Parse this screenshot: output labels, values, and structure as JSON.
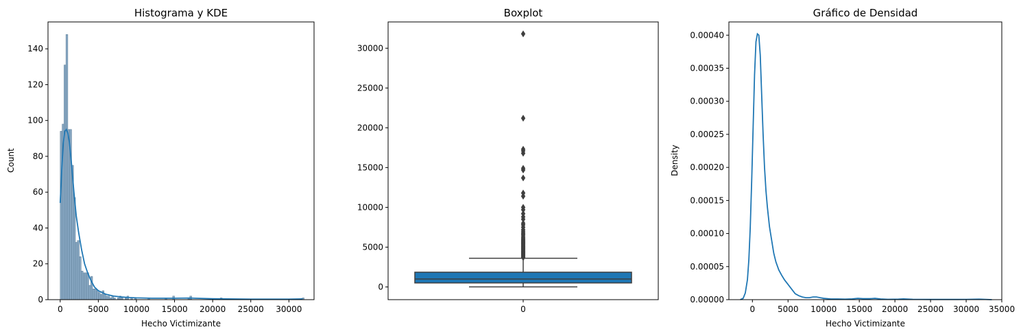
{
  "chart_data": [
    {
      "type": "bar",
      "title": "Histograma y KDE",
      "xlabel": "Hecho Victimizante",
      "ylabel": "Count",
      "xlim": [
        -1600,
        33300
      ],
      "ylim": [
        0,
        155
      ],
      "xticks": [
        0,
        5000,
        10000,
        15000,
        20000,
        25000,
        30000
      ],
      "yticks": [
        0,
        20,
        40,
        60,
        80,
        100,
        120,
        140
      ],
      "bin_width": 250,
      "bins": [
        {
          "x": 0,
          "count": 94
        },
        {
          "x": 250,
          "count": 98
        },
        {
          "x": 500,
          "count": 131
        },
        {
          "x": 750,
          "count": 148
        },
        {
          "x": 1000,
          "count": 95
        },
        {
          "x": 1250,
          "count": 95
        },
        {
          "x": 1500,
          "count": 75
        },
        {
          "x": 1750,
          "count": 57
        },
        {
          "x": 2000,
          "count": 32
        },
        {
          "x": 2250,
          "count": 33
        },
        {
          "x": 2500,
          "count": 24
        },
        {
          "x": 2750,
          "count": 16
        },
        {
          "x": 3000,
          "count": 15
        },
        {
          "x": 3250,
          "count": 15
        },
        {
          "x": 3500,
          "count": 15
        },
        {
          "x": 3750,
          "count": 8
        },
        {
          "x": 4000,
          "count": 13
        },
        {
          "x": 4250,
          "count": 6
        },
        {
          "x": 4500,
          "count": 6
        },
        {
          "x": 4750,
          "count": 5
        },
        {
          "x": 5000,
          "count": 4
        },
        {
          "x": 5250,
          "count": 3
        },
        {
          "x": 5500,
          "count": 5
        },
        {
          "x": 5750,
          "count": 3
        },
        {
          "x": 6000,
          "count": 2
        },
        {
          "x": 6250,
          "count": 2
        },
        {
          "x": 6500,
          "count": 1
        },
        {
          "x": 6750,
          "count": 2
        },
        {
          "x": 7000,
          "count": 1
        },
        {
          "x": 7500,
          "count": 1
        },
        {
          "x": 7750,
          "count": 2
        },
        {
          "x": 8000,
          "count": 1
        },
        {
          "x": 8500,
          "count": 1
        },
        {
          "x": 8750,
          "count": 2
        },
        {
          "x": 9250,
          "count": 1
        },
        {
          "x": 9750,
          "count": 1
        },
        {
          "x": 11500,
          "count": 1
        },
        {
          "x": 13750,
          "count": 1
        },
        {
          "x": 14750,
          "count": 2
        },
        {
          "x": 16750,
          "count": 1
        },
        {
          "x": 17000,
          "count": 2
        },
        {
          "x": 21000,
          "count": 1
        },
        {
          "x": 31750,
          "count": 1
        }
      ],
      "kde": {
        "x": [
          0,
          200,
          400,
          600,
          800,
          1000,
          1200,
          1500,
          1800,
          2100,
          2400,
          2800,
          3200,
          3600,
          4000,
          4500,
          5000,
          6000,
          7000,
          8000,
          9000,
          10000,
          12000,
          15000,
          17000,
          20000,
          25000,
          30000,
          31800
        ],
        "y": [
          54,
          72,
          87,
          94,
          95,
          93,
          88,
          75,
          60,
          47,
          38,
          28,
          20,
          15,
          11,
          7,
          5,
          3,
          2,
          1.5,
          1.2,
          1,
          0.8,
          0.8,
          0.9,
          0.5,
          0.3,
          0.3,
          0.4
        ]
      },
      "colors": {
        "bar_fill": "#87a7c2",
        "bar_edge": "#5f7f99",
        "kde": "#1f77b4"
      }
    },
    {
      "type": "box",
      "title": "Boxplot",
      "xticks": [
        "0"
      ],
      "ylim": [
        -1600,
        33300
      ],
      "yticks": [
        0,
        5000,
        10000,
        15000,
        20000,
        25000,
        30000
      ],
      "box": {
        "whisker_low": 0,
        "q1": 500,
        "median": 1000,
        "q3": 1850,
        "whisker_high": 3600
      },
      "outliers": [
        3700,
        3800,
        3900,
        4000,
        4100,
        4200,
        4300,
        4400,
        4500,
        4600,
        4700,
        4800,
        4900,
        5000,
        5100,
        5200,
        5300,
        5400,
        5500,
        5600,
        5700,
        5800,
        5900,
        6000,
        6150,
        6300,
        6500,
        6650,
        6800,
        7000,
        7200,
        7500,
        7800,
        8000,
        8500,
        8800,
        9200,
        9700,
        10000,
        11400,
        11800,
        13700,
        14700,
        14900,
        16800,
        17100,
        17300,
        21200,
        31800
      ],
      "colors": {
        "box_fill": "#1f77b4",
        "line": "#3f3f3f",
        "outlier": "#3f3f3f"
      }
    },
    {
      "type": "line",
      "title": "Gráfico de Densidad",
      "xlabel": "Hecho Victimizante",
      "ylabel": "Density",
      "xlim": [
        -3300,
        35000
      ],
      "ylim": [
        0,
        0.00042
      ],
      "xticks": [
        0,
        5000,
        10000,
        15000,
        20000,
        25000,
        30000,
        35000
      ],
      "yticks": [
        0,
        5e-05,
        0.0001,
        0.00015,
        0.0002,
        0.00025,
        0.0003,
        0.00035,
        0.0004
      ],
      "ytick_labels": [
        "0.00000",
        "0.00005",
        "0.00010",
        "0.00015",
        "0.00020",
        "0.00025",
        "0.00030",
        "0.00035",
        "0.00040"
      ],
      "x": [
        -1700,
        -1300,
        -1000,
        -700,
        -500,
        -300,
        -100,
        100,
        300,
        500,
        700,
        900,
        1100,
        1300,
        1500,
        1700,
        1900,
        2100,
        2400,
        2700,
        3000,
        3300,
        3700,
        4100,
        4500,
        5000,
        5500,
        6000,
        6500,
        7000,
        7500,
        8000,
        8500,
        9000,
        9500,
        10000,
        11000,
        12000,
        13000,
        14000,
        14800,
        15500,
        16500,
        17200,
        18000,
        19000,
        20500,
        21200,
        22500,
        25000,
        28000,
        30000,
        31800,
        33600
      ],
      "y": [
        0,
        2e-06,
        1e-05,
        3e-05,
        6e-05,
        0.00011,
        0.00018,
        0.00026,
        0.00034,
        0.00039,
        0.000402,
        0.0004,
        0.00037,
        0.00031,
        0.00025,
        0.0002,
        0.000165,
        0.00014,
        0.00011,
        9e-05,
        7e-05,
        5.7e-05,
        4.5e-05,
        3.7e-05,
        3e-05,
        2.3e-05,
        1.6e-05,
        9e-06,
        6e-06,
        4e-06,
        3e-06,
        3e-06,
        4e-06,
        4e-06,
        3e-06,
        2e-06,
        1e-06,
        1e-06,
        8e-07,
        1.2e-06,
        2e-06,
        1.5e-06,
        1.5e-06,
        2e-06,
        1e-06,
        5e-07,
        8e-07,
        1.2e-06,
        5e-07,
        3e-07,
        3e-07,
        4e-07,
        8e-07,
        0
      ]
    }
  ]
}
